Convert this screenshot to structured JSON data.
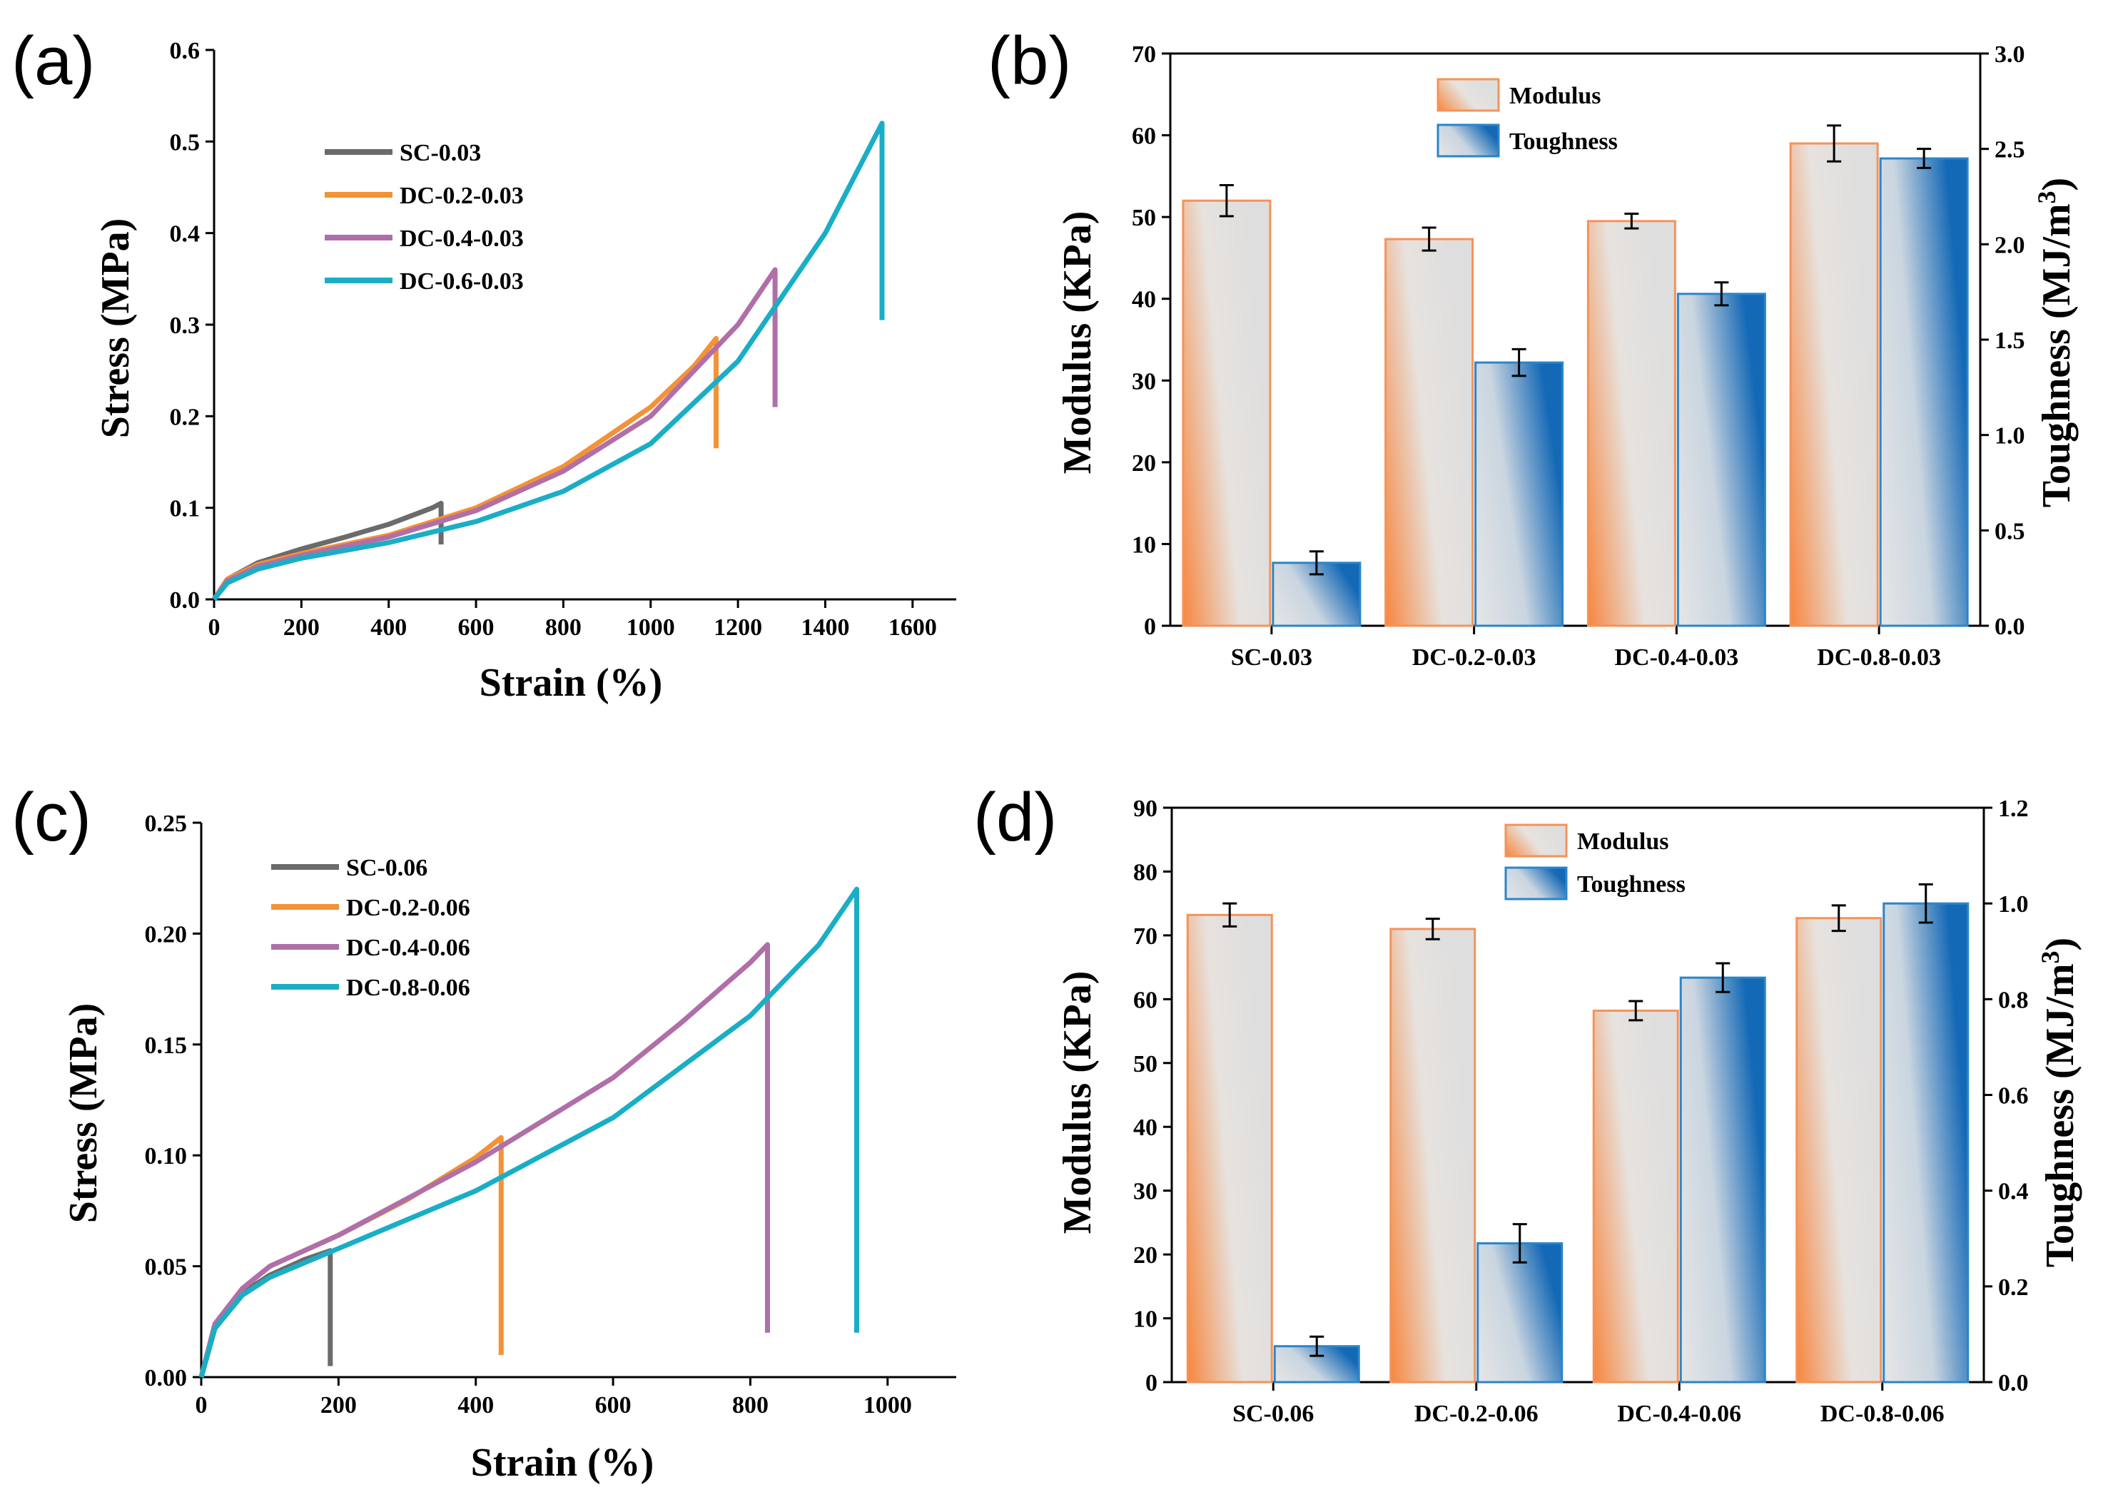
{
  "colors": {
    "SC": "#6b6b6b",
    "DC-0.2": "#f39236",
    "DC-0.4": "#b06fa8",
    "DC-0.6/0.8": "#1aaec6",
    "modulus_edge": "#f3935a",
    "modulus_grad_start": "#f7863d",
    "modulus_grad_end": "#e0e0e0",
    "toughness_edge": "#2b85c8",
    "toughness_grad_start": "#e0e0e0",
    "toughness_grad_end": "#1469b6"
  },
  "chart_data": [
    {
      "panel": "(a)",
      "type": "line",
      "xlabel": "Strain (%)",
      "ylabel": "Stress (MPa)",
      "xlim": [
        0,
        1700
      ],
      "ylim": [
        0,
        0.6
      ],
      "xticks": [
        0,
        200,
        400,
        600,
        800,
        1000,
        1200,
        1400,
        1600
      ],
      "xtick_labels": [
        "0",
        "200",
        "400",
        "600",
        "800",
        "1000",
        "1200",
        "1400",
        "1600"
      ],
      "yticks": [
        0,
        0.1,
        0.2,
        0.3,
        0.4,
        0.5,
        0.6
      ],
      "ytick_labels": [
        "0.0",
        "0.1",
        "0.2",
        "0.3",
        "0.4",
        "0.5",
        "0.6"
      ],
      "series": [
        {
          "name": "SC-0.03",
          "color_key": "SC",
          "x": [
            0,
            30,
            100,
            200,
            300,
            400,
            500,
            520,
            520
          ],
          "y": [
            0,
            0.022,
            0.04,
            0.055,
            0.068,
            0.082,
            0.1,
            0.105,
            0.06
          ]
        },
        {
          "name": "DC-0.2-0.03",
          "color_key": "DC-0.2",
          "x": [
            0,
            30,
            100,
            200,
            400,
            600,
            800,
            1000,
            1100,
            1150,
            1150
          ],
          "y": [
            0,
            0.022,
            0.038,
            0.05,
            0.07,
            0.1,
            0.145,
            0.21,
            0.255,
            0.285,
            0.165
          ]
        },
        {
          "name": "DC-0.4-0.03",
          "color_key": "DC-0.4",
          "x": [
            0,
            30,
            100,
            200,
            400,
            600,
            800,
            1000,
            1200,
            1285,
            1285
          ],
          "y": [
            0,
            0.02,
            0.036,
            0.048,
            0.068,
            0.097,
            0.14,
            0.2,
            0.3,
            0.36,
            0.21
          ]
        },
        {
          "name": "DC-0.6-0.03",
          "color_key": "DC-0.6/0.8",
          "x": [
            0,
            30,
            100,
            200,
            400,
            600,
            800,
            1000,
            1200,
            1400,
            1530,
            1530
          ],
          "y": [
            0,
            0.018,
            0.033,
            0.045,
            0.062,
            0.085,
            0.118,
            0.17,
            0.26,
            0.4,
            0.52,
            0.305
          ]
        }
      ],
      "legend": [
        "SC-0.03",
        "DC-0.2-0.03",
        "DC-0.4-0.03",
        "DC-0.6-0.03"
      ]
    },
    {
      "panel": "(b)",
      "type": "bar",
      "categories": [
        "SC-0.03",
        "DC-0.2-0.03",
        "DC-0.4-0.03",
        "DC-0.8-0.03"
      ],
      "ylabel": "Modulus (KPa)",
      "ylabel2": "Toughness (MJ/m",
      "ylabel2_sup": "3",
      "ylabel2_close": ")",
      "ylim": [
        0,
        70
      ],
      "ylim2": [
        0,
        3.0
      ],
      "yticks": [
        0,
        10,
        20,
        30,
        40,
        50,
        60,
        70
      ],
      "ytick_labels": [
        "0",
        "10",
        "20",
        "30",
        "40",
        "50",
        "60",
        "70"
      ],
      "yticks2": [
        0,
        0.5,
        1.0,
        1.5,
        2.0,
        2.5,
        3.0
      ],
      "ytick2_labels": [
        "0.0",
        "0.5",
        "1.0",
        "1.5",
        "2.0",
        "2.5",
        "3.0"
      ],
      "series": [
        {
          "name": "Modulus",
          "axis": "left",
          "values": [
            52,
            47.3,
            49.5,
            59
          ],
          "errors": [
            1.9,
            1.4,
            0.9,
            2.2
          ]
        },
        {
          "name": "Toughness",
          "axis": "right",
          "values": [
            0.33,
            1.38,
            1.74,
            2.45
          ],
          "errors": [
            0.06,
            0.07,
            0.06,
            0.05
          ]
        }
      ],
      "legend": [
        "Modulus",
        "Toughness"
      ]
    },
    {
      "panel": "(c)",
      "type": "line",
      "xlabel": "Strain (%)",
      "ylabel": "Stress (MPa)",
      "xlim": [
        0,
        1100
      ],
      "ylim": [
        0,
        0.25
      ],
      "xticks": [
        0,
        200,
        400,
        600,
        800,
        1000
      ],
      "xtick_labels": [
        "0",
        "200",
        "400",
        "600",
        "800",
        "1000"
      ],
      "yticks": [
        0,
        0.05,
        0.1,
        0.15,
        0.2,
        0.25
      ],
      "ytick_labels": [
        "0.00",
        "0.05",
        "0.10",
        "0.15",
        "0.20",
        "0.25"
      ],
      "series": [
        {
          "name": "SC-0.06",
          "color_key": "SC",
          "x": [
            0,
            20,
            60,
            100,
            150,
            188,
            188
          ],
          "y": [
            0,
            0.022,
            0.038,
            0.046,
            0.053,
            0.057,
            0.005
          ]
        },
        {
          "name": "DC-0.2-0.06",
          "color_key": "DC-0.2",
          "x": [
            0,
            20,
            60,
            100,
            200,
            300,
            400,
            437,
            437
          ],
          "y": [
            0,
            0.024,
            0.04,
            0.05,
            0.064,
            0.08,
            0.099,
            0.108,
            0.01
          ]
        },
        {
          "name": "DC-0.4-0.06",
          "color_key": "DC-0.4",
          "x": [
            0,
            20,
            60,
            100,
            200,
            400,
            600,
            700,
            800,
            825,
            825
          ],
          "y": [
            0,
            0.024,
            0.04,
            0.05,
            0.064,
            0.097,
            0.135,
            0.16,
            0.187,
            0.195,
            0.02
          ]
        },
        {
          "name": "DC-0.8-0.06",
          "color_key": "DC-0.6/0.8",
          "x": [
            0,
            20,
            60,
            100,
            200,
            400,
            600,
            800,
            900,
            955,
            955
          ],
          "y": [
            0,
            0.022,
            0.037,
            0.045,
            0.058,
            0.084,
            0.117,
            0.163,
            0.195,
            0.22,
            0.02
          ]
        }
      ],
      "legend": [
        "SC-0.06",
        "DC-0.2-0.06",
        "DC-0.4-0.06",
        "DC-0.8-0.06"
      ]
    },
    {
      "panel": "(d)",
      "type": "bar",
      "categories": [
        "SC-0.06",
        "DC-0.2-0.06",
        "DC-0.4-0.06",
        "DC-0.8-0.06"
      ],
      "ylabel": "Modulus (KPa)",
      "ylabel2": "Toughness (MJ/m",
      "ylabel2_sup": "3",
      "ylabel2_close": ")",
      "ylim": [
        0,
        90
      ],
      "ylim2": [
        0,
        1.2
      ],
      "yticks": [
        0,
        10,
        20,
        30,
        40,
        50,
        60,
        70,
        80,
        90
      ],
      "ytick_labels": [
        "0",
        "10",
        "20",
        "30",
        "40",
        "50",
        "60",
        "70",
        "80",
        "90"
      ],
      "yticks2": [
        0,
        0.2,
        0.4,
        0.6,
        0.8,
        1.0,
        1.2
      ],
      "ytick2_labels": [
        "0.0",
        "0.2",
        "0.4",
        "0.6",
        "0.8",
        "1.0",
        "1.2"
      ],
      "series": [
        {
          "name": "Modulus",
          "axis": "left",
          "values": [
            73.2,
            71,
            58.2,
            72.7
          ],
          "errors": [
            1.8,
            1.6,
            1.5,
            2.0
          ]
        },
        {
          "name": "Toughness",
          "axis": "right",
          "values": [
            0.075,
            0.29,
            0.845,
            1.0
          ],
          "errors": [
            0.02,
            0.04,
            0.03,
            0.04
          ]
        }
      ],
      "legend": [
        "Modulus",
        "Toughness"
      ]
    }
  ]
}
